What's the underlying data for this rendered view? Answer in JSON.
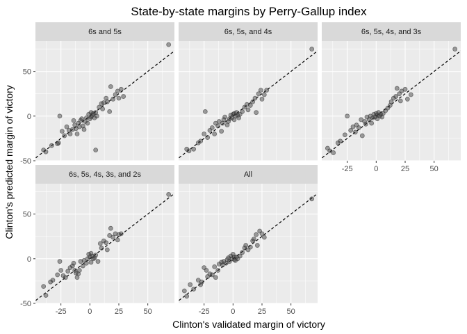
{
  "chart_data": {
    "type": "scatter",
    "title": "State-by-state margins by Perry-Gallup index",
    "xlabel": "Clinton's validated margin of victory",
    "ylabel": "Clinton's predicted margin of victory",
    "xlim": [
      -47,
      73
    ],
    "ylim": [
      -50,
      84
    ],
    "xticks": [
      -25,
      0,
      25,
      50
    ],
    "yticks": [
      -50,
      0,
      50
    ],
    "reference_line": {
      "type": "identity",
      "style": "dashed",
      "color": "#000000"
    },
    "point_color": "#333333",
    "panels": [
      {
        "name": "6s and 5s",
        "points": [
          [
            -40,
            -38
          ],
          [
            -38,
            -40
          ],
          [
            -33,
            -33
          ],
          [
            -28,
            -31
          ],
          [
            -27,
            -30
          ],
          [
            -26,
            0
          ],
          [
            -24,
            -17
          ],
          [
            -22,
            -22
          ],
          [
            -20,
            -12
          ],
          [
            -18,
            -16
          ],
          [
            -17,
            -20
          ],
          [
            -15,
            -15
          ],
          [
            -14,
            -5
          ],
          [
            -13,
            -10
          ],
          [
            -12,
            -14
          ],
          [
            -11,
            -20
          ],
          [
            -10,
            -8
          ],
          [
            -9,
            -12
          ],
          [
            -8,
            -5
          ],
          [
            -7,
            -3
          ],
          [
            -6,
            -11
          ],
          [
            -5,
            -15
          ],
          [
            -4,
            -6
          ],
          [
            -3,
            -2
          ],
          [
            -2,
            -8
          ],
          [
            -1,
            2
          ],
          [
            0,
            -3
          ],
          [
            1,
            4
          ],
          [
            1,
            -1
          ],
          [
            2,
            1
          ],
          [
            3,
            3
          ],
          [
            4,
            -2
          ],
          [
            5,
            4
          ],
          [
            6,
            0
          ],
          [
            8,
            10
          ],
          [
            10,
            14
          ],
          [
            11,
            8
          ],
          [
            12,
            15
          ],
          [
            14,
            20
          ],
          [
            15,
            16
          ],
          [
            17,
            5
          ],
          [
            18,
            33
          ],
          [
            20,
            19
          ],
          [
            22,
            24
          ],
          [
            24,
            28
          ],
          [
            25,
            20
          ],
          [
            27,
            30
          ],
          [
            29,
            22
          ],
          [
            5,
            -38
          ],
          [
            68,
            80
          ]
        ]
      },
      {
        "name": "6s, 5s, and 4s",
        "points": [
          [
            -40,
            -37
          ],
          [
            -38,
            -39
          ],
          [
            -34,
            -37
          ],
          [
            -30,
            -30
          ],
          [
            -28,
            -28
          ],
          [
            -25,
            -20
          ],
          [
            -24,
            5
          ],
          [
            -22,
            -24
          ],
          [
            -20,
            -16
          ],
          [
            -18,
            -13
          ],
          [
            -16,
            -20
          ],
          [
            -15,
            -8
          ],
          [
            -13,
            -11
          ],
          [
            -12,
            -6
          ],
          [
            -10,
            -17
          ],
          [
            -9,
            -8
          ],
          [
            -8,
            -4
          ],
          [
            -7,
            -1
          ],
          [
            -5,
            -10
          ],
          [
            -4,
            -6
          ],
          [
            -3,
            -3
          ],
          [
            -2,
            1
          ],
          [
            -1,
            -2
          ],
          [
            0,
            2
          ],
          [
            1,
            -4
          ],
          [
            1,
            3
          ],
          [
            2,
            0
          ],
          [
            3,
            4
          ],
          [
            4,
            1
          ],
          [
            5,
            -2
          ],
          [
            6,
            2
          ],
          [
            8,
            5
          ],
          [
            10,
            10
          ],
          [
            12,
            13
          ],
          [
            13,
            7
          ],
          [
            15,
            12
          ],
          [
            17,
            16
          ],
          [
            19,
            20
          ],
          [
            20,
            4
          ],
          [
            22,
            25
          ],
          [
            24,
            29
          ],
          [
            25,
            19
          ],
          [
            27,
            24
          ],
          [
            29,
            29
          ],
          [
            68,
            75
          ]
        ]
      },
      {
        "name": "6s, 5s, 4s, and 3s",
        "points": [
          [
            -42,
            -36
          ],
          [
            -40,
            -39
          ],
          [
            -37,
            -41
          ],
          [
            -33,
            -30
          ],
          [
            -31,
            -28
          ],
          [
            -27,
            -21
          ],
          [
            -25,
            0
          ],
          [
            -22,
            -16
          ],
          [
            -20,
            -12
          ],
          [
            -18,
            -18
          ],
          [
            -17,
            -10
          ],
          [
            -15,
            -13
          ],
          [
            -13,
            -4
          ],
          [
            -12,
            -22
          ],
          [
            -10,
            -6
          ],
          [
            -9,
            -9
          ],
          [
            -8,
            -1
          ],
          [
            -6,
            -4
          ],
          [
            -5,
            0
          ],
          [
            -4,
            -8
          ],
          [
            -3,
            -2
          ],
          [
            -2,
            2
          ],
          [
            -1,
            -1
          ],
          [
            0,
            3
          ],
          [
            1,
            1
          ],
          [
            1,
            -3
          ],
          [
            2,
            4
          ],
          [
            3,
            0
          ],
          [
            4,
            2
          ],
          [
            5,
            -1
          ],
          [
            6,
            3
          ],
          [
            8,
            6
          ],
          [
            10,
            9
          ],
          [
            12,
            12
          ],
          [
            13,
            16
          ],
          [
            15,
            20
          ],
          [
            17,
            22
          ],
          [
            18,
            31
          ],
          [
            20,
            25
          ],
          [
            21,
            17
          ],
          [
            22,
            28
          ],
          [
            25,
            30
          ],
          [
            27,
            19
          ],
          [
            30,
            24
          ],
          [
            68,
            75
          ]
        ]
      },
      {
        "name": "6s, 5s, 4s, 3s, and 2s",
        "points": [
          [
            -40,
            -31
          ],
          [
            -38,
            -41
          ],
          [
            -34,
            -26
          ],
          [
            -32,
            -24
          ],
          [
            -28,
            -18
          ],
          [
            -26,
            -3
          ],
          [
            -25,
            -13
          ],
          [
            -23,
            -19
          ],
          [
            -21,
            -21
          ],
          [
            -19,
            -14
          ],
          [
            -17,
            -10
          ],
          [
            -15,
            -8
          ],
          [
            -14,
            -5
          ],
          [
            -13,
            -13
          ],
          [
            -12,
            -16
          ],
          [
            -11,
            -21
          ],
          [
            -10,
            -17
          ],
          [
            -9,
            -13
          ],
          [
            -8,
            -3
          ],
          [
            -6,
            -8
          ],
          [
            -5,
            -2
          ],
          [
            -3,
            -5
          ],
          [
            -2,
            0
          ],
          [
            -1,
            5
          ],
          [
            0,
            2
          ],
          [
            1,
            -4
          ],
          [
            1,
            6
          ],
          [
            2,
            3
          ],
          [
            3,
            0
          ],
          [
            4,
            1
          ],
          [
            5,
            4
          ],
          [
            7,
            -3
          ],
          [
            9,
            17
          ],
          [
            10,
            12
          ],
          [
            12,
            20
          ],
          [
            14,
            18
          ],
          [
            15,
            10
          ],
          [
            17,
            26
          ],
          [
            18,
            34
          ],
          [
            20,
            24
          ],
          [
            22,
            28
          ],
          [
            24,
            21
          ],
          [
            25,
            27
          ],
          [
            27,
            28
          ],
          [
            68,
            72
          ]
        ]
      },
      {
        "name": "All",
        "points": [
          [
            -42,
            -36
          ],
          [
            -40,
            -42
          ],
          [
            -37,
            -29
          ],
          [
            -34,
            -34
          ],
          [
            -30,
            -24
          ],
          [
            -28,
            -29
          ],
          [
            -27,
            -26
          ],
          [
            -25,
            -10
          ],
          [
            -23,
            -13
          ],
          [
            -22,
            -20
          ],
          [
            -20,
            -17
          ],
          [
            -18,
            -18
          ],
          [
            -16,
            -9
          ],
          [
            -15,
            -21
          ],
          [
            -13,
            -13
          ],
          [
            -12,
            -6
          ],
          [
            -10,
            -4
          ],
          [
            -9,
            -7
          ],
          [
            -8,
            -3
          ],
          [
            -6,
            -5
          ],
          [
            -5,
            -1
          ],
          [
            -4,
            1
          ],
          [
            -3,
            -3
          ],
          [
            -2,
            3
          ],
          [
            -1,
            0
          ],
          [
            0,
            5
          ],
          [
            1,
            -1
          ],
          [
            1,
            2
          ],
          [
            2,
            -2
          ],
          [
            3,
            2
          ],
          [
            4,
            0
          ],
          [
            6,
            3
          ],
          [
            8,
            7
          ],
          [
            10,
            12
          ],
          [
            11,
            15
          ],
          [
            13,
            10
          ],
          [
            15,
            13
          ],
          [
            17,
            20
          ],
          [
            18,
            22
          ],
          [
            20,
            27
          ],
          [
            21,
            15
          ],
          [
            23,
            31
          ],
          [
            25,
            28
          ],
          [
            27,
            24
          ],
          [
            68,
            67
          ]
        ]
      }
    ]
  }
}
